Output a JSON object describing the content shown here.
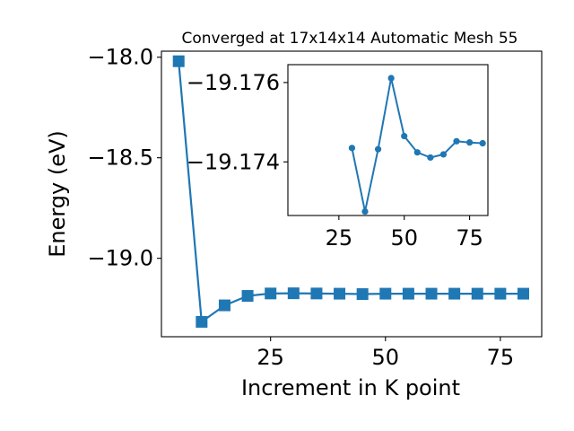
{
  "chart_data": [
    {
      "type": "line",
      "title": "Converged at 17x14x14 Automatic Mesh 55",
      "xlabel": "Increment in K point",
      "ylabel": "Energy (eV)",
      "xlim": [
        1.25,
        84.0
      ],
      "ylim": [
        -19.39,
        -17.97
      ],
      "xticks": [
        25,
        50,
        75
      ],
      "xtick_labels": [
        "25",
        "50",
        "75"
      ],
      "yticks": [
        -18.0,
        -18.5,
        -19.0
      ],
      "ytick_labels": [
        "−18.0",
        "−18.5",
        "−19.0"
      ],
      "marker": "square",
      "color": "#1f77b4",
      "grid": false,
      "series": [
        {
          "x": [
            5,
            10,
            15,
            20,
            25,
            30,
            35,
            40,
            45,
            50,
            55,
            60,
            65,
            70,
            75,
            80
          ],
          "y": [
            -18.02,
            -19.316,
            -19.234,
            -19.187,
            -19.175,
            -19.174,
            -19.175,
            -19.176,
            -19.178,
            -19.176,
            -19.176,
            -19.176,
            -19.176,
            -19.176,
            -19.176,
            -19.176
          ]
        }
      ]
    },
    {
      "type": "line",
      "title": "",
      "xlim": [
        5.5,
        82.0
      ],
      "ylim": [
        -19.17265,
        -19.17645
      ],
      "xticks": [
        25,
        50,
        75
      ],
      "xtick_labels": [
        "25",
        "50",
        "75"
      ],
      "yticks": [
        -19.176,
        -19.174
      ],
      "ytick_labels": [
        "−19.176",
        "−19.174"
      ],
      "marker": "circle",
      "color": "#1f77b4",
      "grid": false,
      "series": [
        {
          "x": [
            30,
            35,
            40,
            45,
            50,
            55,
            60,
            65,
            70,
            75,
            80
          ],
          "y": [
            -19.17435,
            -19.17275,
            -19.17432,
            -19.17611,
            -19.17465,
            -19.17424,
            -19.17411,
            -19.17419,
            -19.17452,
            -19.17449,
            -19.17447
          ]
        }
      ]
    }
  ]
}
